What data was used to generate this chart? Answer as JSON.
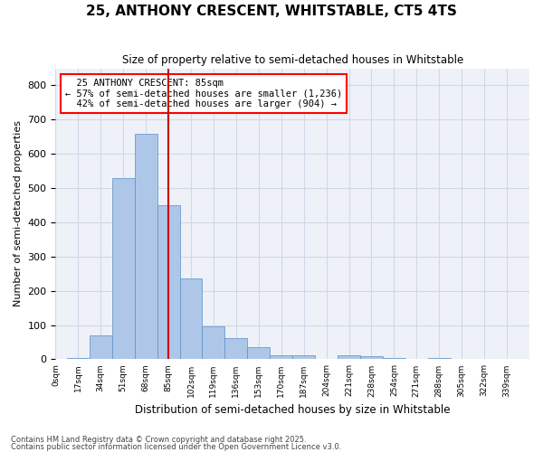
{
  "title": "25, ANTHONY CRESCENT, WHITSTABLE, CT5 4TS",
  "subtitle": "Size of property relative to semi-detached houses in Whitstable",
  "xlabel": "Distribution of semi-detached houses by size in Whitstable",
  "ylabel": "Number of semi-detached properties",
  "property_label": "25 ANTHONY CRESCENT: 85sqm",
  "pct_smaller": 57,
  "pct_larger": 42,
  "n_smaller": 1236,
  "n_larger": 904,
  "bin_labels": [
    "0sqm",
    "17sqm",
    "34sqm",
    "51sqm",
    "68sqm",
    "85sqm",
    "102sqm",
    "119sqm",
    "136sqm",
    "153sqm",
    "170sqm",
    "187sqm",
    "204sqm",
    "221sqm",
    "238sqm",
    "254sqm",
    "271sqm",
    "288sqm",
    "305sqm",
    "322sqm",
    "339sqm"
  ],
  "bar_values": [
    5,
    70,
    530,
    660,
    450,
    235,
    95,
    62,
    35,
    12,
    13,
    0,
    12,
    8,
    4,
    0,
    4,
    0,
    0,
    0
  ],
  "bar_color": "#aec6e8",
  "bar_edge_color": "#5a90c8",
  "vline_color": "#cc0000",
  "grid_color": "#d0d8e8",
  "bg_color": "#eef2f8",
  "ylim": [
    0,
    850
  ],
  "yticks": [
    0,
    100,
    200,
    300,
    400,
    500,
    600,
    700,
    800
  ],
  "footer1": "Contains HM Land Registry data © Crown copyright and database right 2025.",
  "footer2": "Contains public sector information licensed under the Open Government Licence v3.0."
}
